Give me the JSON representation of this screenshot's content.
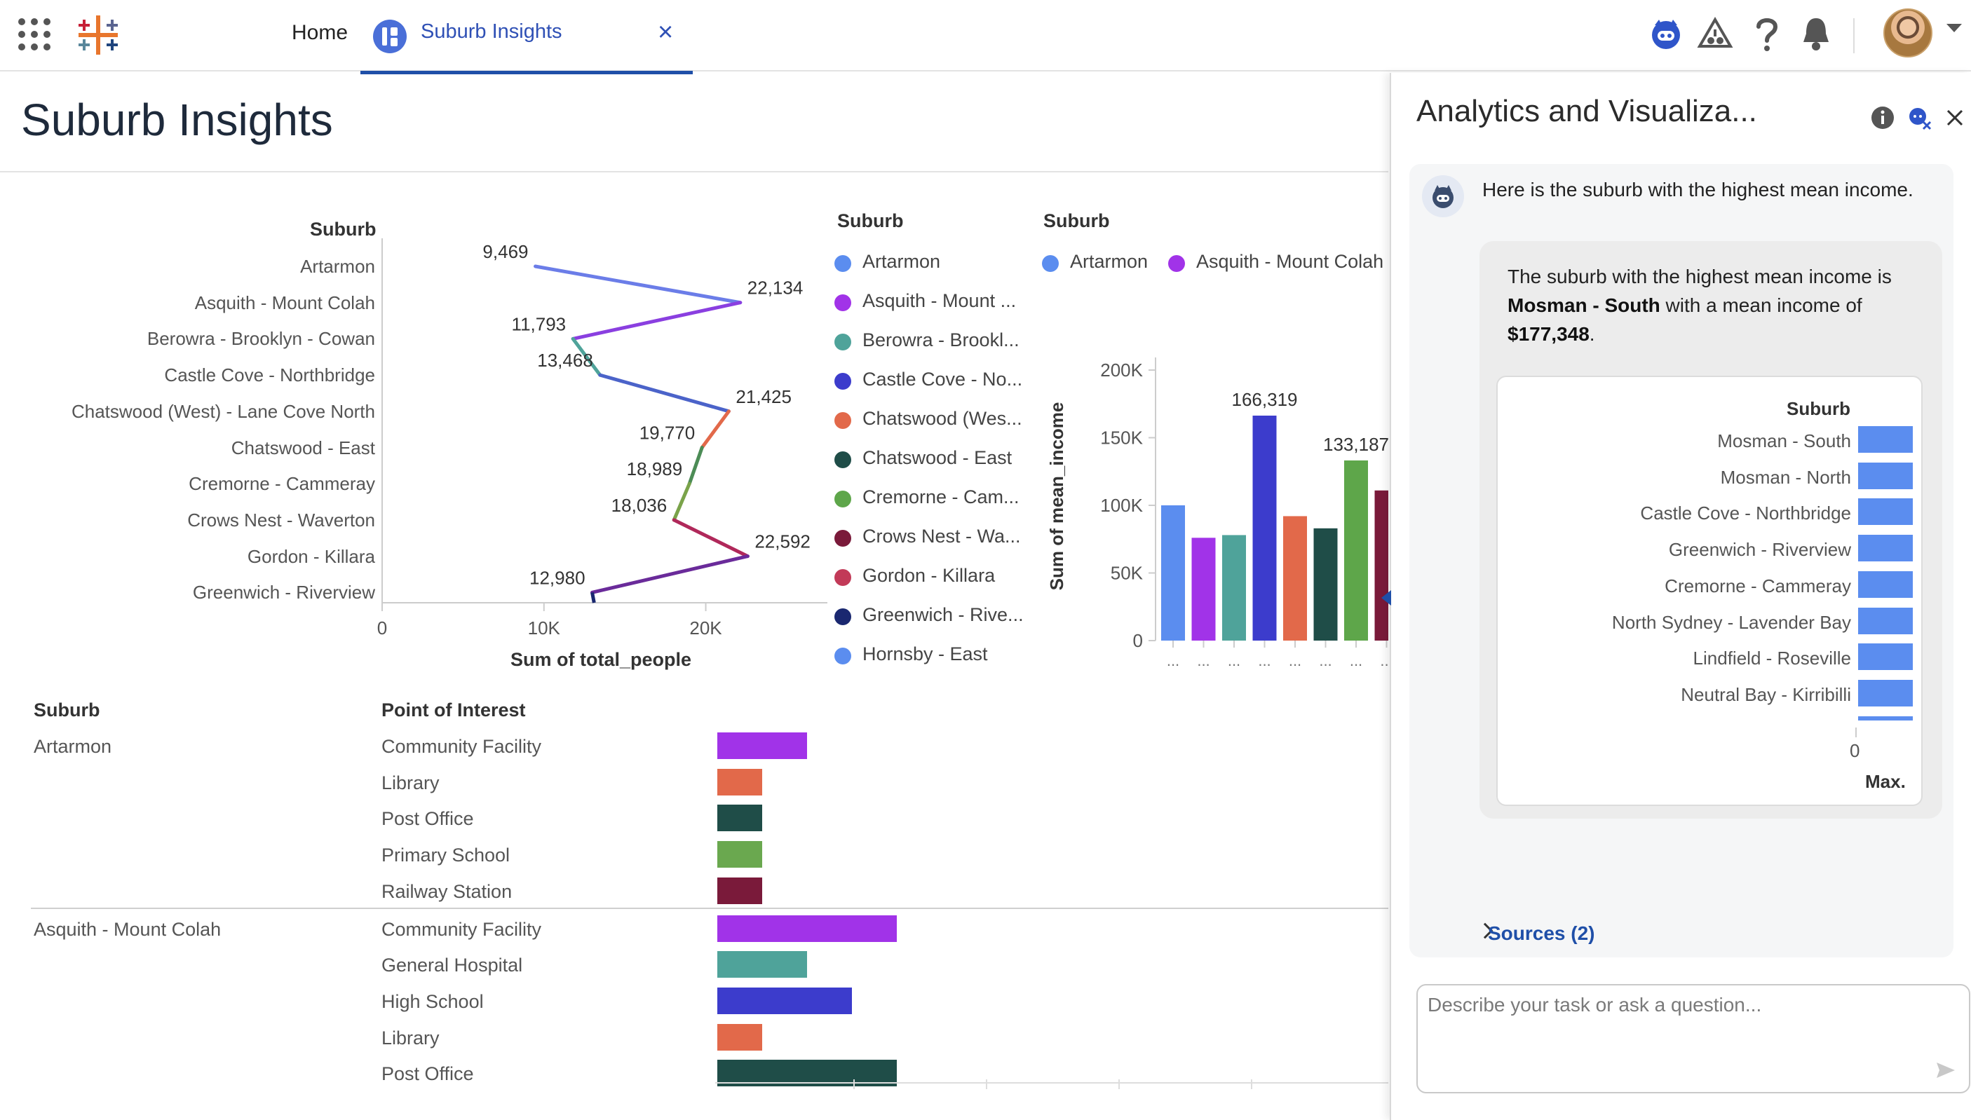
{
  "nav": {
    "home_label": "Home",
    "active_tab_label": "Suburb Insights",
    "close_glyph": "×"
  },
  "page": {
    "title": "Suburb Insights"
  },
  "line_chart": {
    "row_header": "Suburb",
    "x_axis_label": "Sum of total_people",
    "ticks": [
      "0",
      "10K",
      "20K"
    ],
    "point_labels": [
      "9,469",
      "22,134",
      "11,793",
      "13,468",
      "21,425",
      "19,770",
      "18,989",
      "18,036",
      "22,592",
      "12,980"
    ]
  },
  "legend1": {
    "title": "Suburb",
    "items": [
      {
        "label": "Artarmon",
        "color": "#5b8def"
      },
      {
        "label": "Asquith - Mount ...",
        "color": "#a133e8"
      },
      {
        "label": "Berowra - Brookl...",
        "color": "#4fa39a"
      },
      {
        "label": "Castle Cove - No...",
        "color": "#3c3ccc"
      },
      {
        "label": "Chatswood (Wes...",
        "color": "#e2694a"
      },
      {
        "label": "Chatswood - East",
        "color": "#1f4d48"
      },
      {
        "label": "Cremorne - Cam...",
        "color": "#5ea64a"
      },
      {
        "label": "Crows Nest - Wa...",
        "color": "#7a1a3a"
      },
      {
        "label": "Gordon - Killara",
        "color": "#c23a58"
      },
      {
        "label": "Greenwich - Rive...",
        "color": "#1a2870"
      },
      {
        "label": "Hornsby - East",
        "color": "#5b8def"
      }
    ]
  },
  "bar_chart": {
    "legend_title": "Suburb",
    "legend_items": [
      {
        "label": "Artarmon",
        "color": "#5b8def"
      },
      {
        "label": "Asquith - Mount Colah",
        "color": "#a133e8"
      }
    ],
    "y_axis_label": "Sum of mean_income",
    "y_ticks": [
      "200K",
      "150K",
      "100K",
      "50K",
      "0"
    ],
    "labels": [
      "166,319",
      "133,187"
    ],
    "x_tick": "..."
  },
  "table": {
    "col_suburb": "Suburb",
    "col_poi": "Point of Interest",
    "groups": [
      {
        "suburb": "Artarmon",
        "rows": [
          {
            "poi": "Community Facility",
            "color": "#a133e8"
          },
          {
            "poi": "Library",
            "color": "#e2694a"
          },
          {
            "poi": "Post Office",
            "color": "#1f4d48"
          },
          {
            "poi": "Primary School",
            "color": "#6aa84f"
          },
          {
            "poi": "Railway Station",
            "color": "#7a1a3a"
          }
        ]
      },
      {
        "suburb": "Asquith - Mount Colah",
        "rows": [
          {
            "poi": "Community Facility",
            "color": "#a133e8"
          },
          {
            "poi": "General Hospital",
            "color": "#4fa39a"
          },
          {
            "poi": "High School",
            "color": "#3c3ccc"
          },
          {
            "poi": "Library",
            "color": "#e2694a"
          },
          {
            "poi": "Post Office",
            "color": "#1f4d48"
          }
        ]
      }
    ]
  },
  "panel": {
    "title": "Analytics and Visualiza...",
    "intro": "Here is the suburb with the highest mean income.",
    "answer_part1": "The suburb with the highest mean income is ",
    "answer_bold1": "Mosman - South",
    "answer_part2": " with a mean income of ",
    "answer_bold2": "$177,348",
    "answer_part3": ".",
    "mini_chart": {
      "header": "Suburb",
      "suburbs": [
        "Mosman - South",
        "Mosman - North",
        "Castle Cove - Northbridge",
        "Greenwich - Riverview",
        "Cremorne - Cammeray",
        "North Sydney - Lavender Bay",
        "Lindfield - Roseville",
        "Neutral Bay - Kirribilli"
      ],
      "axis_zero": "0",
      "axis_label": "Max."
    },
    "sources_label": "Sources (2)",
    "input_placeholder": "Describe your task or ask a question..."
  },
  "chart_data": [
    {
      "type": "line",
      "x_axis_label": "Sum of total_people",
      "y_axis_label": "Suburb",
      "categories": [
        "Artarmon",
        "Asquith - Mount Colah",
        "Berowra - Brooklyn - Cowan",
        "Castle Cove - Northbridge",
        "Chatswood (West) - Lane Cove North",
        "Chatswood - East",
        "Cremorne - Cammeray",
        "Crows Nest - Waverton",
        "Gordon - Killara",
        "Greenwich - Riverview"
      ],
      "values": [
        9469,
        22134,
        11793,
        13468,
        21425,
        19770,
        18989,
        18036,
        22592,
        12980
      ],
      "xlim": [
        0,
        26000
      ],
      "x_ticks": [
        0,
        10000,
        20000
      ]
    },
    {
      "type": "bar",
      "y_axis_label": "Sum of mean_income",
      "ylim": [
        0,
        200000
      ],
      "y_ticks": [
        0,
        50000,
        100000,
        150000,
        200000
      ],
      "categories": [
        "Artarmon",
        "Asquith - Mount Colah",
        "Berowra - Brooklyn - Cowan",
        "Castle Cove - Northbridge",
        "Chatswood (West) - Lane Cove North",
        "Chatswood - East",
        "Cremorne - Cammeray",
        "Crows Nest - Waverton"
      ],
      "values": [
        100000,
        76000,
        78000,
        166319,
        92000,
        83000,
        133187,
        111000
      ],
      "colors": [
        "#5b8def",
        "#a133e8",
        "#4fa39a",
        "#3c3ccc",
        "#e2694a",
        "#1f4d48",
        "#5ea64a",
        "#7a1a3a"
      ]
    },
    {
      "type": "bar",
      "orientation": "horizontal",
      "categories": [
        "Artarmon / Community Facility",
        "Artarmon / Library",
        "Artarmon / Post Office",
        "Artarmon / Primary School",
        "Artarmon / Railway Station",
        "Asquith - Mount Colah / Community Facility",
        "Asquith - Mount Colah / General Hospital",
        "Asquith - Mount Colah / High School",
        "Asquith - Mount Colah / Library",
        "Asquith - Mount Colah / Post Office"
      ],
      "values": [
        2,
        1,
        1,
        1,
        1,
        4,
        2,
        3,
        1,
        4
      ]
    }
  ]
}
